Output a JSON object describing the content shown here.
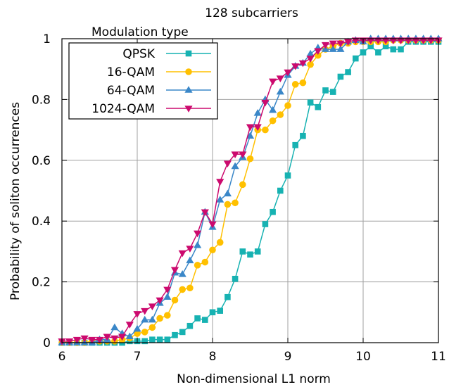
{
  "chart_data": {
    "type": "line",
    "title": "128 subcarriers",
    "xlabel": "Non-dimensional L1 norm",
    "ylabel": "Probability of soliton occurrences",
    "xlim": [
      6,
      11
    ],
    "ylim": [
      0,
      1
    ],
    "xticks": [
      "6",
      "7",
      "8",
      "9",
      "10",
      "11"
    ],
    "yticks": [
      "0",
      "0.2",
      "0.4",
      "0.6",
      "0.8",
      "1"
    ],
    "grid": true,
    "legend": {
      "title": "Modulation type",
      "position": "top-left"
    },
    "x": [
      6.0,
      6.1,
      6.2,
      6.3,
      6.4,
      6.5,
      6.6,
      6.7,
      6.8,
      6.9,
      7.0,
      7.1,
      7.2,
      7.3,
      7.4,
      7.5,
      7.6,
      7.7,
      7.8,
      7.9,
      8.0,
      8.1,
      8.2,
      8.3,
      8.4,
      8.5,
      8.6,
      8.7,
      8.8,
      8.9,
      9.0,
      9.1,
      9.2,
      9.3,
      9.4,
      9.5,
      9.6,
      9.7,
      9.8,
      9.9,
      10.0,
      10.1,
      10.2,
      10.3,
      10.4,
      10.5,
      10.6,
      10.7,
      10.8,
      10.9,
      11.0
    ],
    "series": [
      {
        "name": "QPSK",
        "color": "#17b2b2",
        "marker": "square",
        "values": [
          0.0,
          0.0,
          0.0,
          0.0,
          0.0,
          0.0,
          0.0,
          0.0,
          0.0,
          0.005,
          0.005,
          0.005,
          0.01,
          0.01,
          0.01,
          0.025,
          0.035,
          0.055,
          0.08,
          0.075,
          0.1,
          0.105,
          0.15,
          0.21,
          0.3,
          0.29,
          0.3,
          0.39,
          0.43,
          0.5,
          0.55,
          0.65,
          0.68,
          0.79,
          0.775,
          0.83,
          0.825,
          0.875,
          0.89,
          0.935,
          0.955,
          0.975,
          0.955,
          0.975,
          0.965,
          0.965,
          0.99,
          0.99,
          0.99,
          0.99,
          0.99
        ]
      },
      {
        "name": "16-QAM",
        "color": "#ffc000",
        "marker": "circle",
        "values": [
          0.0,
          0.0,
          0.0,
          0.0,
          0.005,
          0.005,
          0.005,
          0.005,
          0.01,
          0.015,
          0.03,
          0.035,
          0.05,
          0.08,
          0.09,
          0.14,
          0.175,
          0.18,
          0.255,
          0.265,
          0.305,
          0.33,
          0.455,
          0.46,
          0.52,
          0.605,
          0.7,
          0.7,
          0.73,
          0.75,
          0.78,
          0.85,
          0.855,
          0.915,
          0.945,
          0.965,
          0.975,
          0.985,
          0.985,
          0.99,
          0.99,
          0.99,
          0.99,
          0.99,
          0.995,
          0.995,
          0.995,
          0.995,
          0.995,
          0.995,
          0.995
        ]
      },
      {
        "name": "64-QAM",
        "color": "#3a87c8",
        "marker": "triangle",
        "values": [
          0.0,
          0.0,
          0.0,
          0.0,
          0.0,
          0.01,
          0.01,
          0.05,
          0.03,
          0.02,
          0.045,
          0.075,
          0.075,
          0.13,
          0.15,
          0.23,
          0.225,
          0.27,
          0.32,
          0.43,
          0.38,
          0.47,
          0.49,
          0.58,
          0.61,
          0.68,
          0.755,
          0.8,
          0.765,
          0.825,
          0.88,
          0.91,
          0.92,
          0.95,
          0.97,
          0.965,
          0.965,
          0.965,
          0.99,
          0.995,
          0.99,
          1.0,
          1.0,
          1.0,
          1.0,
          1.0,
          1.0,
          1.0,
          1.0,
          1.0,
          1.0
        ]
      },
      {
        "name": "1024-QAM",
        "color": "#cc0a6e",
        "marker": "triangle-down",
        "values": [
          0.005,
          0.005,
          0.01,
          0.015,
          0.01,
          0.01,
          0.02,
          0.015,
          0.02,
          0.06,
          0.095,
          0.105,
          0.12,
          0.14,
          0.175,
          0.24,
          0.295,
          0.31,
          0.36,
          0.43,
          0.39,
          0.53,
          0.59,
          0.62,
          0.62,
          0.71,
          0.71,
          0.79,
          0.86,
          0.87,
          0.89,
          0.91,
          0.92,
          0.935,
          0.96,
          0.98,
          0.985,
          0.985,
          0.99,
          0.995,
          0.995,
          0.995,
          0.995,
          0.995,
          0.995,
          0.995,
          0.995,
          0.995,
          0.995,
          0.995,
          0.995
        ]
      }
    ]
  }
}
